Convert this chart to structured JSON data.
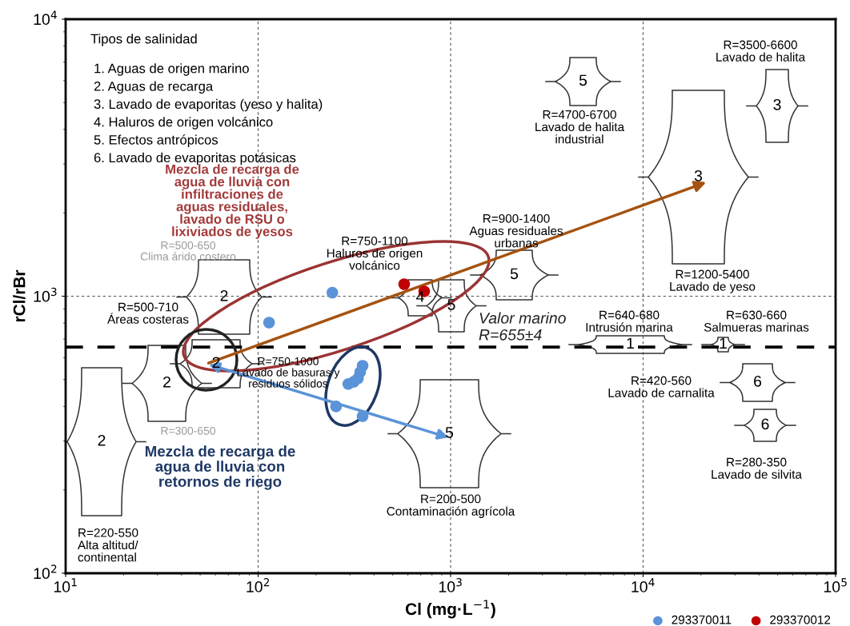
{
  "chart_data": {
    "type": "scatter",
    "xlabel": "Cl (mg·L$^{−1}$)",
    "ylabel": "rCl/rBr",
    "log": "xy",
    "xlim": [
      10,
      100000
    ],
    "ylim": [
      100,
      10000
    ],
    "xticks": [
      {
        "value": 10,
        "label": "10$^{1}$"
      },
      {
        "value": 100,
        "label": "10$^{2}$"
      },
      {
        "value": 1000,
        "label": "10$^{3}$"
      },
      {
        "value": 10000,
        "label": "10$^{4}$"
      },
      {
        "value": 100000,
        "label": "10$^{5}$"
      }
    ],
    "yticks": [
      {
        "value": 100,
        "label": "10$^{2}$"
      },
      {
        "value": 1000,
        "label": "10$^{3}$"
      },
      {
        "value": 10000,
        "label": "10$^{4}$"
      }
    ],
    "grid": true,
    "legend": "bottom right",
    "marker": "circle",
    "series": [
      {
        "name": "293370011",
        "color": "#5b93d8",
        "x": [
          243,
          114,
          349,
          339,
          330,
          314,
          294,
          254,
          349
        ],
        "values": [
          1030,
          803,
          561,
          532,
          505,
          491,
          482,
          400,
          369
        ]
      },
      {
        "name": "293370012",
        "color": "#c00000",
        "x": [
          574,
          729
        ],
        "values": [
          1105,
          1041
        ]
      }
    ],
    "ref_lines": [
      {
        "axis": "y",
        "value": 655,
        "label": "Valor marino\nR=655±4",
        "color": "#000000",
        "line_style": "dashed"
      }
    ],
    "annotations": [
      "Tipos de salinidad",
      "1. Aguas de origen marino",
      "2. Aguas de recarga",
      "3. Lavado de evaporitas (yeso y halita)",
      "4. Haluros de origen volcánico",
      "5. Efectos antrópicos",
      "6. Lavado de evaporitas potásicas",
      "Mezcla de recarga de\nagua de lluvia con\ninfiltraciones de\naguas residuales,\nlavado de RSU o\nlixiviados de yesos",
      "Mezcla de recarga de\nagua de lluvia con\nretornos de riego",
      "R=500-650\nClima árido costero",
      "R=750-1100\nHaluros de origen\nvolcánico",
      "R=500-710\nÁreas costeras",
      "R=750-1000\nLavado de basuras y\nresiduos sólidos",
      "R=220-550\nAlta altitud/\ncontinental",
      "R=300-650",
      "R=200-500\nContaminación agrícola",
      "R=900-1400\nAguas residuales\nurbanas",
      "R=4700-6700\nLavado de halita\nindustrial",
      "R=3500-6600\nLavado de halita",
      "R=1200-5400\nLavado de yeso",
      "R=640-680\nIntrusión marina",
      "R=630-660\nSalmueras marinas",
      "R=420-560\nLavado de carnalita",
      "R=280-350\nLavado de silvita",
      "2",
      "2",
      "2",
      "2",
      "5",
      "5",
      "4",
      "5",
      "5",
      "3",
      "3",
      "1",
      "1",
      "6",
      "6"
    ]
  }
}
